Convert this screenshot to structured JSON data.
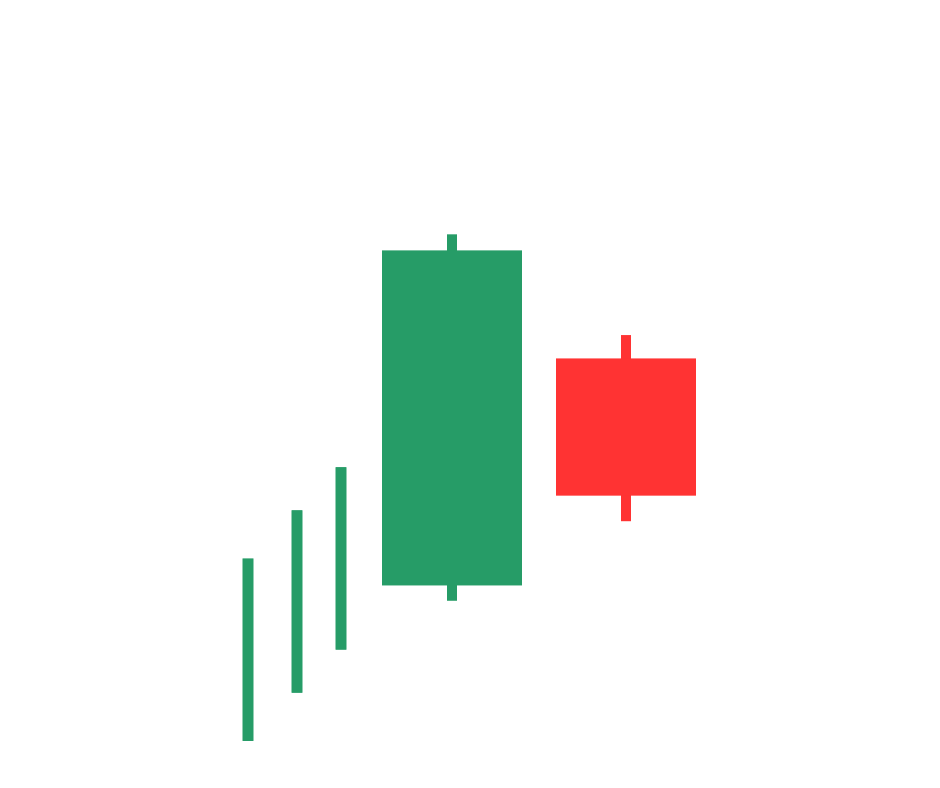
{
  "chart_data": {
    "type": "candlestick",
    "title": "",
    "xlabel": "",
    "ylabel": "",
    "axes_visible": false,
    "grid": false,
    "legend": "none",
    "ylim": [
      0,
      100
    ],
    "colors": {
      "up": "#269C67",
      "down": "#FF3333",
      "background": "#FFFFFF"
    },
    "candles": [
      {
        "index": 1,
        "open": 12.2,
        "high": 37.2,
        "low": 12.2,
        "close": 37.2,
        "direction": "up",
        "body_width": "thin"
      },
      {
        "index": 2,
        "open": 18.8,
        "high": 43.8,
        "low": 18.8,
        "close": 43.8,
        "direction": "up",
        "body_width": "thin"
      },
      {
        "index": 3,
        "open": 24.7,
        "high": 49.7,
        "low": 24.7,
        "close": 49.7,
        "direction": "up",
        "body_width": "thin"
      },
      {
        "index": 4,
        "open": 33.5,
        "high": 81.6,
        "low": 31.4,
        "close": 79.4,
        "direction": "up",
        "body_width": "wide"
      },
      {
        "index": 5,
        "open": 64.6,
        "high": 67.8,
        "low": 42.3,
        "close": 45.8,
        "direction": "down",
        "body_width": "wide"
      }
    ]
  }
}
